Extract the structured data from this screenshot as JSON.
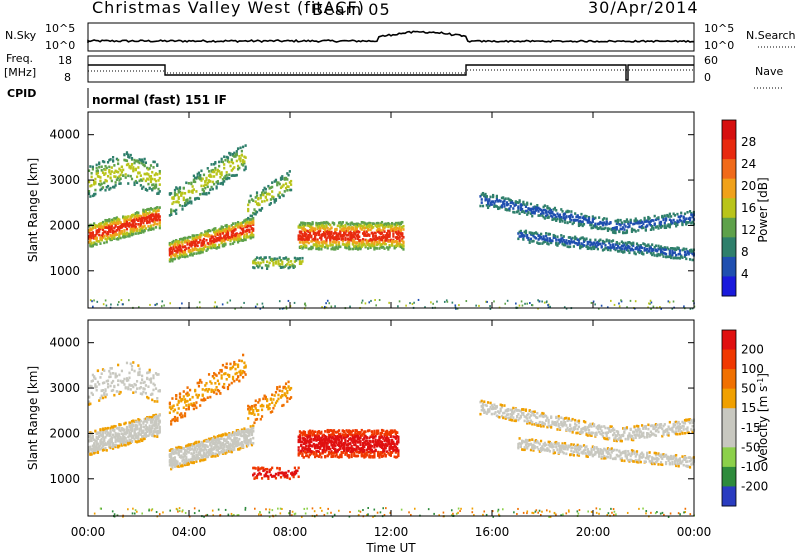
{
  "header": {
    "title": "Christmas Valley West (fitACF)",
    "beam": "Beam 05",
    "date": "30/Apr/2014"
  },
  "top_panels": {
    "nsky_label": "N.Sky",
    "nsky_ticks": [
      "10^5",
      "10^0"
    ],
    "nsearch_label": "N.Search",
    "freq_label": "Freq.",
    "freq_unit": "[MHz]",
    "freq_ticks": [
      "18",
      "8"
    ],
    "nave_label": "Nave",
    "nave_ticks": [
      "60",
      "0"
    ],
    "cpid_label": "CPID",
    "cpid_value": "normal (fast) 151 IF"
  },
  "colors": {
    "power": [
      "#1a1adc",
      "#1f4fb0",
      "#2e7f6b",
      "#5ea14a",
      "#b9c41a",
      "#f0a11a",
      "#f06a1a",
      "#e82a0f",
      "#d60f0f"
    ],
    "velocity": [
      "#2a3cc0",
      "#2e8b3c",
      "#8cd04a",
      "#c8c8c0",
      "#c8c8c0",
      "#f0a000",
      "#f07000",
      "#f03800",
      "#e01010"
    ]
  },
  "chart_data": [
    {
      "type": "heatmap",
      "name": "power",
      "ylabel": "Slant Range [km]",
      "xlabel": "Time UT",
      "x_ticks": [
        "00:00",
        "04:00",
        "08:00",
        "12:00",
        "16:00",
        "20:00",
        "00:00"
      ],
      "xlim": [
        0,
        24
      ],
      "ylim": [
        180,
        4500
      ],
      "y_ticks": [
        1000,
        2000,
        3000,
        4000
      ],
      "colorbar_label": "Power [dB]",
      "colorbar_ticks": [
        "28",
        "24",
        "20",
        "16",
        "12",
        "8",
        "4"
      ]
    },
    {
      "type": "heatmap",
      "name": "velocity",
      "ylabel": "Slant Range [km]",
      "xlabel": "Time UT",
      "x_ticks": [
        "00:00",
        "04:00",
        "08:00",
        "12:00",
        "16:00",
        "20:00",
        "00:00"
      ],
      "xlim": [
        0,
        24
      ],
      "ylim": [
        180,
        4500
      ],
      "y_ticks": [
        1000,
        2000,
        3000,
        4000
      ],
      "colorbar_label": "Velocity [m s^-1]",
      "colorbar_ticks": [
        "200",
        "100",
        "50",
        "15",
        "-15",
        "-50",
        "-100",
        "-200"
      ]
    }
  ]
}
